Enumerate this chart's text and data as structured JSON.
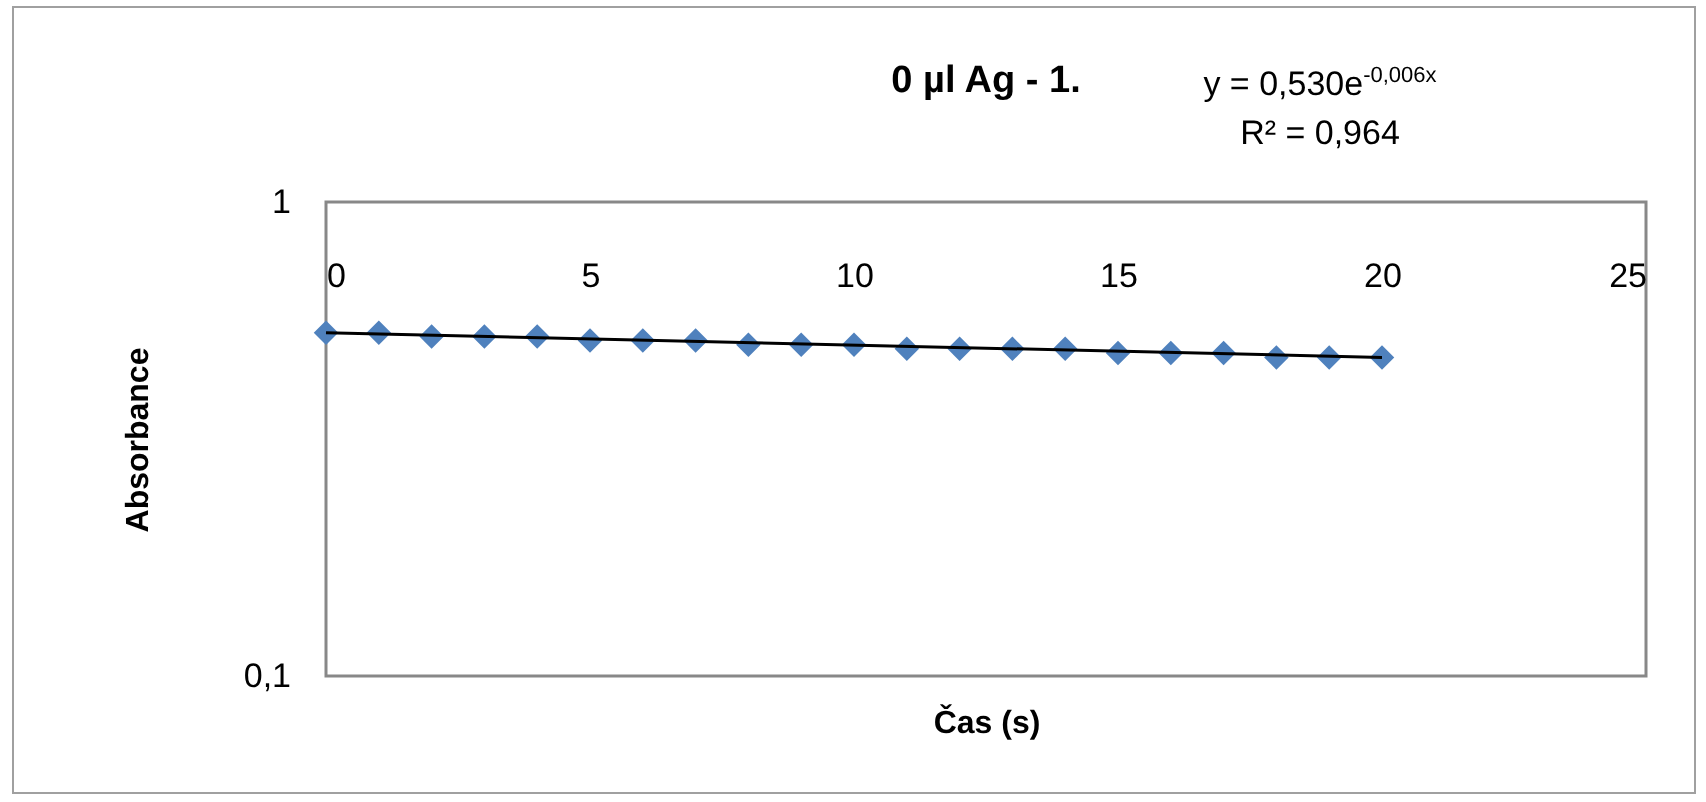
{
  "chart_data": {
    "type": "scatter",
    "title": "0 µl Ag - 1.",
    "xlabel": "Čas (s)",
    "ylabel": "Absorbance",
    "annotations": [
      "y = 0,530e$^{-0,006x}$",
      "R² = 0,964"
    ],
    "x": [
      0,
      1,
      2,
      3,
      4,
      5,
      6,
      7,
      8,
      9,
      10,
      11,
      12,
      13,
      14,
      15,
      16,
      17,
      18,
      19,
      20
    ],
    "series": [
      {
        "color": "#4f81bd",
        "marker": "diamond",
        "values": [
          0.53,
          0.53,
          0.52,
          0.52,
          0.52,
          0.51,
          0.51,
          0.51,
          0.5,
          0.5,
          0.5,
          0.49,
          0.49,
          0.49,
          0.49,
          0.48,
          0.48,
          0.48,
          0.47,
          0.47,
          0.47
        ]
      },
      {
        "type": "line",
        "color": "#000000",
        "x": [
          0,
          20
        ],
        "values": [
          0.53,
          0.47
        ]
      }
    ],
    "log": "y",
    "xlim": [
      0,
      25
    ],
    "xticks": [
      0,
      5,
      10,
      15,
      20,
      25
    ],
    "ylim": [
      0.1,
      1
    ],
    "yticks": [
      {
        "value": 0.1,
        "label": "0,1"
      },
      1
    ],
    "grid": false
  }
}
